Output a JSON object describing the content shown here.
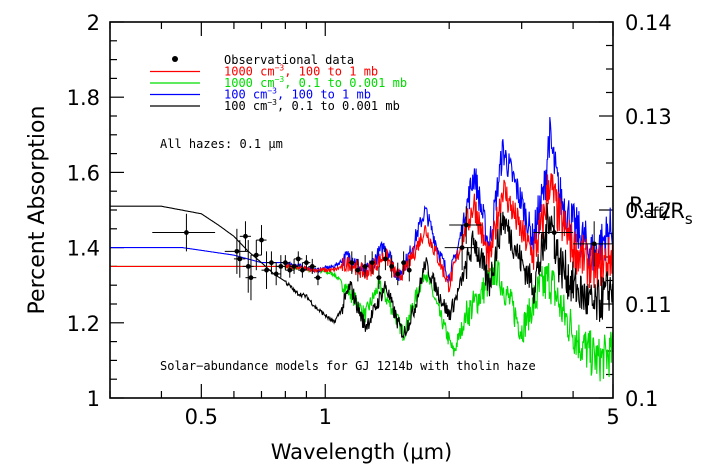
{
  "chart_data": {
    "type": "line",
    "xscale": "log",
    "xlim": [
      0.3,
      5.0
    ],
    "ylim": [
      1.0,
      2.0
    ],
    "y2lim": [
      0.1,
      0.14
    ],
    "xlabel": "Wavelength (μm)",
    "ylabel": "Percent Absorption",
    "y2label": "R_eff/R_s",
    "x_tick_labels": [
      {
        "value": 0.5,
        "label": "0.5"
      },
      {
        "value": 1,
        "label": "1"
      },
      {
        "value": 5,
        "label": "5"
      }
    ],
    "y_tick_labels": [
      {
        "value": 1,
        "label": "1"
      },
      {
        "value": 1.2,
        "label": "1.2"
      },
      {
        "value": 1.4,
        "label": "1.4"
      },
      {
        "value": 1.6,
        "label": "1.6"
      },
      {
        "value": 1.8,
        "label": "1.8"
      },
      {
        "value": 2,
        "label": "2"
      }
    ],
    "y2_tick_labels": [
      {
        "value": 0.1,
        "label": "0.1"
      },
      {
        "value": 0.11,
        "label": "0.11"
      },
      {
        "value": 0.12,
        "label": "0.12"
      },
      {
        "value": 0.13,
        "label": "0.13"
      },
      {
        "value": 0.14,
        "label": "0.14"
      }
    ],
    "legend": {
      "placement": "top-left",
      "entries": [
        {
          "label": "Observational data",
          "color": "#000000",
          "marker": "dot"
        },
        {
          "base": "1000 cm",
          "sup": "−3",
          "rest": ", 100 to 1 mb",
          "color": "#ff0000"
        },
        {
          "base": "1000 cm",
          "sup": "−3",
          "rest": ", 0.1 to 0.001 mb",
          "color": "#00dd00"
        },
        {
          "base": "100 cm",
          "sup": "−3",
          "rest": ", 100 to 1 mb",
          "color": "#0000ff"
        },
        {
          "base": "100 cm",
          "sup": "−3",
          "rest": ", 0.1 to 0.001 mb",
          "color": "#000000"
        }
      ]
    },
    "annotations": {
      "haze": "All hazes: 0.1 μm",
      "models": "Solar−abundance models for GJ 1214b with tholin haze"
    },
    "series": [
      {
        "label_ref": "1000 cm-3, 100 to 1 mb",
        "color": "#ff0000",
        "order": 3,
        "points": [
          [
            0.3,
            1.35
          ],
          [
            0.6,
            1.35
          ],
          [
            0.8,
            1.35
          ],
          [
            0.95,
            1.34
          ],
          [
            1.05,
            1.34
          ],
          [
            1.15,
            1.36
          ],
          [
            1.25,
            1.33
          ],
          [
            1.4,
            1.38
          ],
          [
            1.5,
            1.32
          ],
          [
            1.6,
            1.36
          ],
          [
            1.75,
            1.45
          ],
          [
            1.9,
            1.36
          ],
          [
            2.0,
            1.3
          ],
          [
            2.1,
            1.38
          ],
          [
            2.3,
            1.52
          ],
          [
            2.5,
            1.36
          ],
          [
            2.7,
            1.56
          ],
          [
            3.0,
            1.44
          ],
          [
            3.2,
            1.38
          ],
          [
            3.4,
            1.48
          ],
          [
            3.5,
            1.58
          ],
          [
            3.7,
            1.48
          ],
          [
            4.0,
            1.4
          ],
          [
            4.5,
            1.34
          ],
          [
            5.0,
            1.38
          ]
        ]
      },
      {
        "label_ref": "1000 cm-3, 0.1 to 0.001 mb",
        "color": "#00dd00",
        "order": 1,
        "points": [
          [
            0.3,
            1.35
          ],
          [
            0.6,
            1.35
          ],
          [
            0.8,
            1.35
          ],
          [
            0.95,
            1.34
          ],
          [
            1.05,
            1.33
          ],
          [
            1.15,
            1.28
          ],
          [
            1.25,
            1.22
          ],
          [
            1.35,
            1.3
          ],
          [
            1.45,
            1.24
          ],
          [
            1.55,
            1.17
          ],
          [
            1.65,
            1.26
          ],
          [
            1.75,
            1.34
          ],
          [
            1.9,
            1.22
          ],
          [
            2.05,
            1.12
          ],
          [
            2.2,
            1.22
          ],
          [
            2.4,
            1.28
          ],
          [
            2.6,
            1.34
          ],
          [
            2.8,
            1.26
          ],
          [
            3.0,
            1.18
          ],
          [
            3.3,
            1.28
          ],
          [
            3.5,
            1.32
          ],
          [
            3.8,
            1.22
          ],
          [
            4.2,
            1.14
          ],
          [
            4.6,
            1.1
          ],
          [
            5.0,
            1.12
          ]
        ]
      },
      {
        "label_ref": "100 cm-3, 100 to 1 mb",
        "color": "#0000ff",
        "order": 2,
        "points": [
          [
            0.3,
            1.4
          ],
          [
            0.45,
            1.4
          ],
          [
            0.6,
            1.38
          ],
          [
            0.7,
            1.36
          ],
          [
            0.8,
            1.36
          ],
          [
            0.95,
            1.34
          ],
          [
            1.05,
            1.35
          ],
          [
            1.15,
            1.38
          ],
          [
            1.25,
            1.33
          ],
          [
            1.4,
            1.41
          ],
          [
            1.5,
            1.32
          ],
          [
            1.6,
            1.38
          ],
          [
            1.75,
            1.5
          ],
          [
            1.9,
            1.38
          ],
          [
            2.0,
            1.32
          ],
          [
            2.1,
            1.4
          ],
          [
            2.3,
            1.6
          ],
          [
            2.5,
            1.4
          ],
          [
            2.7,
            1.66
          ],
          [
            3.0,
            1.52
          ],
          [
            3.2,
            1.42
          ],
          [
            3.4,
            1.55
          ],
          [
            3.5,
            1.7
          ],
          [
            3.7,
            1.54
          ],
          [
            4.0,
            1.46
          ],
          [
            4.5,
            1.38
          ],
          [
            5.0,
            1.46
          ]
        ]
      },
      {
        "label_ref": "100 cm-3, 0.1 to 0.001 mb",
        "color": "#000000",
        "order": 4,
        "points": [
          [
            0.3,
            1.51
          ],
          [
            0.4,
            1.51
          ],
          [
            0.5,
            1.49
          ],
          [
            0.55,
            1.46
          ],
          [
            0.6,
            1.43
          ],
          [
            0.65,
            1.39
          ],
          [
            0.7,
            1.36
          ],
          [
            0.75,
            1.33
          ],
          [
            0.8,
            1.31
          ],
          [
            0.85,
            1.28
          ],
          [
            0.9,
            1.27
          ],
          [
            0.95,
            1.24
          ],
          [
            1.0,
            1.22
          ],
          [
            1.05,
            1.2
          ],
          [
            1.1,
            1.24
          ],
          [
            1.15,
            1.3
          ],
          [
            1.2,
            1.24
          ],
          [
            1.25,
            1.19
          ],
          [
            1.3,
            1.22
          ],
          [
            1.4,
            1.3
          ],
          [
            1.5,
            1.2
          ],
          [
            1.55,
            1.17
          ],
          [
            1.65,
            1.24
          ],
          [
            1.75,
            1.36
          ],
          [
            1.9,
            1.27
          ],
          [
            2.0,
            1.22
          ],
          [
            2.1,
            1.28
          ],
          [
            2.3,
            1.42
          ],
          [
            2.5,
            1.3
          ],
          [
            2.7,
            1.48
          ],
          [
            3.0,
            1.36
          ],
          [
            3.2,
            1.3
          ],
          [
            3.4,
            1.4
          ],
          [
            3.5,
            1.5
          ],
          [
            3.7,
            1.36
          ],
          [
            4.0,
            1.3
          ],
          [
            4.5,
            1.24
          ],
          [
            5.0,
            1.3
          ]
        ]
      }
    ],
    "observations": [
      {
        "x": 0.46,
        "y": 1.44,
        "xerr": [
          0.38,
          0.54
        ],
        "yerr": 0.05
      },
      {
        "x": 0.61,
        "y": 1.39,
        "xerr": [
          0.57,
          0.65
        ],
        "yerr": 0.06
      },
      {
        "x": 0.62,
        "y": 1.37,
        "xerr": [
          0.6,
          0.64
        ],
        "yerr": 0.05
      },
      {
        "x": 0.64,
        "y": 1.43,
        "xerr": [
          0.62,
          0.66
        ],
        "yerr": 0.04
      },
      {
        "x": 0.65,
        "y": 1.35,
        "xerr": [
          0.63,
          0.67
        ],
        "yerr": 0.07
      },
      {
        "x": 0.66,
        "y": 1.32,
        "xerr": [
          0.64,
          0.68
        ],
        "yerr": 0.06
      },
      {
        "x": 0.68,
        "y": 1.38,
        "xerr": [
          0.66,
          0.7
        ],
        "yerr": 0.04
      },
      {
        "x": 0.7,
        "y": 1.42,
        "xerr": [
          0.68,
          0.72
        ],
        "yerr": 0.04
      },
      {
        "x": 0.72,
        "y": 1.34,
        "xerr": [
          0.7,
          0.74
        ],
        "yerr": 0.05
      },
      {
        "x": 0.74,
        "y": 1.36,
        "xerr": [
          0.72,
          0.76
        ],
        "yerr": 0.03
      },
      {
        "x": 0.76,
        "y": 1.33,
        "xerr": [
          0.74,
          0.78
        ],
        "yerr": 0.03
      },
      {
        "x": 0.78,
        "y": 1.35,
        "xerr": [
          0.76,
          0.8
        ],
        "yerr": 0.03
      },
      {
        "x": 0.8,
        "y": 1.36,
        "xerr": [
          0.78,
          0.82
        ],
        "yerr": 0.02
      },
      {
        "x": 0.82,
        "y": 1.34,
        "xerr": [
          0.8,
          0.84
        ],
        "yerr": 0.02
      },
      {
        "x": 0.84,
        "y": 1.35,
        "xerr": [
          0.82,
          0.86
        ],
        "yerr": 0.02
      },
      {
        "x": 0.86,
        "y": 1.37,
        "xerr": [
          0.84,
          0.88
        ],
        "yerr": 0.02
      },
      {
        "x": 0.88,
        "y": 1.34,
        "xerr": [
          0.86,
          0.9
        ],
        "yerr": 0.02
      },
      {
        "x": 0.9,
        "y": 1.36,
        "xerr": [
          0.88,
          0.92
        ],
        "yerr": 0.02
      },
      {
        "x": 0.93,
        "y": 1.35,
        "xerr": [
          0.91,
          0.95
        ],
        "yerr": 0.02
      },
      {
        "x": 0.96,
        "y": 1.32,
        "xerr": [
          0.94,
          0.98
        ],
        "yerr": 0.02
      },
      {
        "x": 1.16,
        "y": 1.36,
        "xerr": [
          1.14,
          1.18
        ],
        "yerr": 0.03
      },
      {
        "x": 1.2,
        "y": 1.34,
        "xerr": [
          1.18,
          1.22
        ],
        "yerr": 0.03
      },
      {
        "x": 1.25,
        "y": 1.35,
        "xerr": [
          1.23,
          1.27
        ],
        "yerr": 0.03
      },
      {
        "x": 1.3,
        "y": 1.36,
        "xerr": [
          1.28,
          1.32
        ],
        "yerr": 0.03
      },
      {
        "x": 1.35,
        "y": 1.32,
        "xerr": [
          1.33,
          1.37
        ],
        "yerr": 0.03
      },
      {
        "x": 1.4,
        "y": 1.37,
        "xerr": [
          1.38,
          1.42
        ],
        "yerr": 0.03
      },
      {
        "x": 1.45,
        "y": 1.35,
        "xerr": [
          1.43,
          1.47
        ],
        "yerr": 0.03
      },
      {
        "x": 1.5,
        "y": 1.33,
        "xerr": [
          1.48,
          1.52
        ],
        "yerr": 0.03
      },
      {
        "x": 1.55,
        "y": 1.36,
        "xerr": [
          1.53,
          1.57
        ],
        "yerr": 0.03
      },
      {
        "x": 1.6,
        "y": 1.34,
        "xerr": [
          1.58,
          1.62
        ],
        "yerr": 0.03
      },
      {
        "x": 2.15,
        "y": 1.4,
        "xerr": [
          1.95,
          2.35
        ],
        "yerr": 0.06
      },
      {
        "x": 2.2,
        "y": 1.46,
        "xerr": [
          2.0,
          2.4
        ],
        "yerr": 0.05
      },
      {
        "x": 3.6,
        "y": 1.44,
        "xerr": [
          3.2,
          4.0
        ],
        "yerr": 0.07
      },
      {
        "x": 4.5,
        "y": 1.41,
        "xerr": [
          4.0,
          5.0
        ],
        "yerr": 0.06
      }
    ]
  }
}
